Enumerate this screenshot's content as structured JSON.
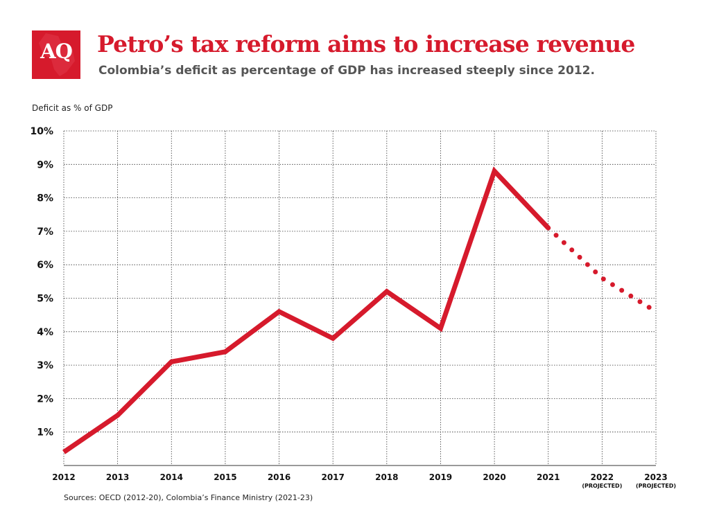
{
  "logo": {
    "text": "AQ",
    "color": "#d61a2c"
  },
  "header": {
    "title": "Petro’s tax reform aims to increase revenue",
    "subtitle": "Colombia’s deficit as percentage of GDP has increased steeply since 2012."
  },
  "chart_data": {
    "type": "line",
    "ylabel": "Deficit as % of GDP",
    "ylim": [
      0,
      10
    ],
    "y_ticks": [
      "1%",
      "2%",
      "3%",
      "4%",
      "5%",
      "6%",
      "7%",
      "8%",
      "9%",
      "10%"
    ],
    "categories": [
      "2012",
      "2013",
      "2014",
      "2015",
      "2016",
      "2017",
      "2018",
      "2019",
      "2020",
      "2021",
      "2022",
      "2023"
    ],
    "category_notes": [
      "",
      "",
      "",
      "",
      "",
      "",
      "",
      "",
      "",
      "",
      "(PROJECTED)",
      "(PROJECTED)"
    ],
    "series": [
      {
        "values": [
          0.4,
          1.5,
          3.1,
          3.4,
          4.6,
          3.8,
          5.2,
          4.1,
          8.8,
          7.1,
          null,
          null
        ],
        "style": "solid",
        "color": "#d61a2c"
      },
      {
        "values": [
          null,
          null,
          null,
          null,
          null,
          null,
          null,
          null,
          null,
          7.1,
          5.6,
          4.6
        ],
        "style": "dotted",
        "color": "#d61a2c"
      }
    ],
    "grid": true,
    "grid_style": "dotted"
  },
  "footer": {
    "source": "Sources: OECD (2012-20), Colombia’s Finance Ministry (2021-23)"
  }
}
